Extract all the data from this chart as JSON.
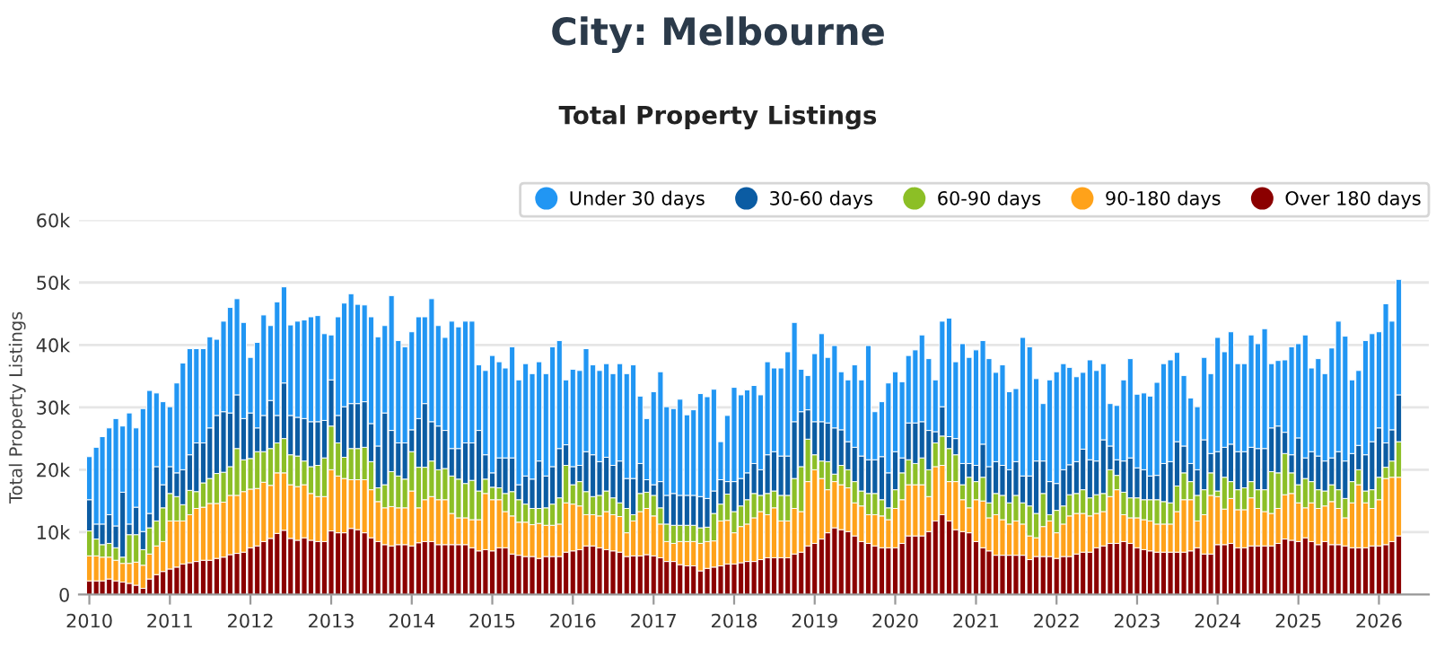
{
  "chart_data": {
    "type": "bar",
    "stacked": true,
    "title": "City: Melbourne",
    "subtitle": "Total Property Listings",
    "ylabel": "Total Property Listings",
    "x": [
      "2010-01",
      "2010-02",
      "2010-03",
      "2010-04",
      "2010-05",
      "2010-06",
      "2010-07",
      "2010-08",
      "2010-09",
      "2010-10",
      "2010-11",
      "2010-12",
      "2011-01",
      "2011-02",
      "2011-03",
      "2011-04",
      "2011-05",
      "2011-06",
      "2011-07",
      "2011-08",
      "2011-09",
      "2011-10",
      "2011-11",
      "2011-12",
      "2012-01",
      "2012-02",
      "2012-03",
      "2012-04",
      "2012-05",
      "2012-06",
      "2012-07",
      "2012-08",
      "2012-09",
      "2012-10",
      "2012-11",
      "2012-12",
      "2013-01",
      "2013-02",
      "2013-03",
      "2013-04",
      "2013-05",
      "2013-06",
      "2013-07",
      "2013-08",
      "2013-09",
      "2013-10",
      "2013-11",
      "2013-12",
      "2014-01",
      "2014-02",
      "2014-03",
      "2014-04",
      "2014-05",
      "2014-06",
      "2014-07",
      "2014-08",
      "2014-09",
      "2014-10",
      "2014-11",
      "2014-12",
      "2015-01",
      "2015-02",
      "2015-03",
      "2015-04",
      "2015-05",
      "2015-06",
      "2015-07",
      "2015-08",
      "2015-09",
      "2015-10",
      "2015-11",
      "2015-12",
      "2016-01",
      "2016-02",
      "2016-03",
      "2016-04",
      "2016-05",
      "2016-06",
      "2016-07",
      "2016-08",
      "2016-09",
      "2016-10",
      "2016-11",
      "2016-12",
      "2017-01",
      "2017-02",
      "2017-03",
      "2017-04",
      "2017-05",
      "2017-06",
      "2017-07",
      "2017-08",
      "2017-09",
      "2017-10",
      "2017-11",
      "2017-12",
      "2018-01",
      "2018-02",
      "2018-03",
      "2018-04",
      "2018-05",
      "2018-06",
      "2018-07",
      "2018-08",
      "2018-09",
      "2018-10",
      "2018-11",
      "2018-12",
      "2019-01",
      "2019-02",
      "2019-03",
      "2019-04",
      "2019-05",
      "2019-06",
      "2019-07",
      "2019-08",
      "2019-09",
      "2019-10",
      "2019-11",
      "2019-12",
      "2020-01",
      "2020-02",
      "2020-03",
      "2020-04",
      "2020-05",
      "2020-06",
      "2020-07",
      "2020-08",
      "2020-09",
      "2020-10",
      "2020-11",
      "2020-12",
      "2021-01",
      "2021-02",
      "2021-03",
      "2021-04",
      "2021-05",
      "2021-06",
      "2021-07",
      "2021-08",
      "2021-09",
      "2021-10",
      "2021-11",
      "2021-12",
      "2022-01",
      "2022-02",
      "2022-03",
      "2022-04",
      "2022-05",
      "2022-06",
      "2022-07",
      "2022-08",
      "2022-09",
      "2022-10",
      "2022-11",
      "2022-12",
      "2023-01",
      "2023-02",
      "2023-03",
      "2023-04",
      "2023-05",
      "2023-06",
      "2023-07",
      "2023-08",
      "2023-09",
      "2023-10",
      "2023-11",
      "2023-12",
      "2024-01",
      "2024-02",
      "2024-03",
      "2024-04",
      "2024-05",
      "2024-06",
      "2024-07",
      "2024-08",
      "2024-09",
      "2024-10",
      "2024-11",
      "2024-12",
      "2025-01",
      "2025-02",
      "2025-03",
      "2025-04",
      "2025-05",
      "2025-06",
      "2025-07",
      "2025-08",
      "2025-09",
      "2025-10",
      "2025-11",
      "2025-12",
      "2026-01",
      "2026-02",
      "2026-03",
      "2026-04"
    ],
    "series": [
      {
        "name": "Over 180 days",
        "color": "#8b0000",
        "values": [
          2200,
          2200,
          2200,
          2500,
          2200,
          2000,
          1800,
          1500,
          1000,
          2500,
          3200,
          3700,
          4100,
          4400,
          4900,
          5100,
          5300,
          5500,
          5500,
          5800,
          6000,
          6400,
          6600,
          6800,
          7500,
          7800,
          8500,
          9000,
          9800,
          10300,
          9000,
          8700,
          9100,
          8700,
          8500,
          8500,
          10200,
          9900,
          9900,
          10600,
          10400,
          9900,
          9100,
          8500,
          8000,
          7800,
          8000,
          8000,
          7800,
          8300,
          8500,
          8500,
          8000,
          8000,
          8000,
          8000,
          8000,
          7500,
          7000,
          7200,
          7000,
          7500,
          7500,
          6500,
          6300,
          6100,
          6100,
          5800,
          6100,
          6100,
          6100,
          6800,
          7000,
          7200,
          7800,
          7800,
          7500,
          7200,
          7000,
          6800,
          6100,
          6200,
          6200,
          6400,
          6200,
          5900,
          5300,
          5300,
          4800,
          4600,
          4600,
          3800,
          4200,
          4400,
          4600,
          4900,
          4900,
          5100,
          5300,
          5300,
          5600,
          5900,
          5900,
          5900,
          5900,
          6500,
          6800,
          7800,
          8200,
          8900,
          9900,
          10700,
          10400,
          10100,
          9400,
          8500,
          8200,
          7800,
          7500,
          7500,
          7500,
          8200,
          9400,
          9400,
          9400,
          10100,
          11800,
          12800,
          11800,
          10400,
          10100,
          9900,
          8500,
          7500,
          7000,
          6300,
          6300,
          6300,
          6300,
          6300,
          5600,
          6100,
          6100,
          6100,
          5800,
          6100,
          6100,
          6500,
          6800,
          6800,
          7500,
          7800,
          8200,
          8200,
          8500,
          8200,
          7500,
          7200,
          7000,
          6800,
          6800,
          6800,
          6800,
          6800,
          7000,
          7500,
          6500,
          6500,
          8000,
          8000,
          8200,
          7500,
          7500,
          7800,
          7800,
          7800,
          7800,
          8200,
          8900,
          8700,
          8500,
          9100,
          8500,
          8000,
          8500,
          8000,
          8000,
          7800,
          7500,
          7500,
          7500,
          7800,
          7800,
          8000,
          8500,
          9400
        ]
      },
      {
        "name": "90-180 days",
        "color": "#ffa21a",
        "values": [
          4000,
          4000,
          3800,
          3500,
          3300,
          3000,
          3200,
          3700,
          3700,
          4000,
          4600,
          4800,
          7700,
          7400,
          6900,
          7700,
          8500,
          8500,
          9100,
          8800,
          8800,
          9500,
          9300,
          9700,
          9400,
          9200,
          9500,
          8500,
          9700,
          9200,
          8600,
          8600,
          8500,
          7500,
          7200,
          7200,
          9800,
          9100,
          8700,
          7800,
          8000,
          8500,
          7700,
          6400,
          5900,
          6300,
          5900,
          5900,
          8800,
          5600,
          6700,
          7200,
          7200,
          7200,
          5000,
          4300,
          4300,
          4500,
          5000,
          9000,
          8200,
          7700,
          5800,
          6100,
          5300,
          5500,
          5100,
          5600,
          5000,
          5000,
          5200,
          7900,
          7500,
          7000,
          5000,
          5000,
          5100,
          6100,
          5800,
          5700,
          3800,
          5600,
          7100,
          7400,
          6400,
          5400,
          3200,
          2900,
          3700,
          3900,
          3900,
          4400,
          4300,
          4200,
          7200,
          7000,
          5000,
          5800,
          6000,
          7000,
          7700,
          6900,
          8000,
          5900,
          5900,
          7300,
          6500,
          10300,
          11800,
          9700,
          6900,
          7400,
          7200,
          7000,
          5300,
          5700,
          4600,
          5000,
          5100,
          4500,
          6300,
          7000,
          8200,
          8200,
          8200,
          5600,
          8700,
          7900,
          6300,
          7700,
          5100,
          4000,
          6700,
          7500,
          5300,
          6500,
          5700,
          5000,
          5500,
          5000,
          3800,
          3000,
          4800,
          5700,
          4100,
          5200,
          6500,
          6500,
          6200,
          5800,
          5500,
          5500,
          7500,
          8600,
          4300,
          4100,
          4800,
          4800,
          4800,
          4500,
          4500,
          4500,
          6500,
          8400,
          8200,
          4300,
          6300,
          9400,
          7700,
          5700,
          7200,
          6100,
          6100,
          7700,
          6000,
          5500,
          5200,
          5600,
          7100,
          7500,
          6200,
          4800,
          6200,
          5800,
          5700,
          6900,
          5800,
          4500,
          7200,
          10100,
          7200,
          6000,
          7400,
          10600,
          10300,
          9400
        ]
      },
      {
        "name": "60-90 days",
        "color": "#8cbf26",
        "values": [
          4000,
          2700,
          2000,
          2200,
          2000,
          1000,
          4600,
          4400,
          2500,
          4200,
          4000,
          5400,
          4400,
          3900,
          2600,
          3900,
          2700,
          3900,
          4000,
          4800,
          4800,
          4600,
          7500,
          5100,
          4900,
          5900,
          4900,
          5900,
          4800,
          5500,
          4800,
          4900,
          3800,
          4300,
          5000,
          6200,
          7000,
          5300,
          3400,
          5000,
          5000,
          5200,
          4500,
          2200,
          3700,
          5600,
          5100,
          4600,
          6300,
          6500,
          5200,
          5700,
          4800,
          5000,
          6000,
          6200,
          5500,
          6300,
          4600,
          2300,
          2000,
          1900,
          2900,
          3900,
          3600,
          2900,
          2600,
          2400,
          2800,
          3400,
          4200,
          6000,
          3100,
          3900,
          3700,
          2900,
          3300,
          3300,
          2700,
          2200,
          3900,
          1000,
          2900,
          2600,
          3300,
          2600,
          2800,
          2900,
          2600,
          2600,
          2600,
          2500,
          2300,
          4400,
          2700,
          4200,
          3400,
          3300,
          3900,
          3900,
          2600,
          3400,
          2700,
          4100,
          4100,
          4800,
          7200,
          6800,
          2400,
          2800,
          4500,
          1200,
          3100,
          2900,
          3400,
          2400,
          3400,
          3400,
          2600,
          1900,
          3000,
          4300,
          4000,
          3400,
          4300,
          4300,
          3800,
          4700,
          5300,
          4300,
          2400,
          4900,
          2900,
          3800,
          2400,
          3400,
          3900,
          3400,
          4100,
          3400,
          4800,
          3900,
          5300,
          1000,
          3600,
          2900,
          3400,
          3200,
          3800,
          2900,
          3000,
          2900,
          4300,
          2300,
          3600,
          3200,
          3200,
          3200,
          3400,
          3900,
          3600,
          3400,
          4100,
          4300,
          2900,
          4100,
          4000,
          3600,
          900,
          5100,
          2700,
          3200,
          3500,
          2600,
          3000,
          3500,
          6700,
          5700,
          6600,
          3300,
          2900,
          4700,
          3400,
          3000,
          2400,
          2700,
          3000,
          3100,
          3400,
          2400,
          1900,
          3000,
          3600,
          1800,
          2600,
          5700
        ]
      },
      {
        "name": "30-60 days",
        "color": "#0b5ca3",
        "values": [
          5000,
          2400,
          3300,
          4600,
          3500,
          10400,
          1700,
          4400,
          2900,
          2300,
          8700,
          3700,
          4300,
          3800,
          5600,
          5700,
          7800,
          6400,
          8100,
          9300,
          9700,
          8600,
          8600,
          6600,
          7300,
          3800,
          5800,
          7700,
          4400,
          8900,
          6300,
          6200,
          6800,
          7200,
          7000,
          6000,
          7400,
          4400,
          8100,
          7200,
          7200,
          7300,
          6100,
          6700,
          11500,
          6600,
          5300,
          5800,
          3500,
          7800,
          10200,
          6300,
          7000,
          6100,
          4400,
          4900,
          6500,
          6000,
          9700,
          3900,
          2300,
          4800,
          5700,
          5400,
          2400,
          4500,
          4700,
          7600,
          5100,
          6000,
          7900,
          3300,
          2900,
          2600,
          6400,
          6700,
          5400,
          5400,
          5200,
          6700,
          4800,
          5800,
          4800,
          2000,
          1700,
          4200,
          4600,
          5100,
          4800,
          4800,
          4800,
          5000,
          4600,
          3600,
          3900,
          2000,
          4800,
          4400,
          4300,
          4800,
          4100,
          6200,
          6300,
          6300,
          6300,
          9100,
          8800,
          4700,
          5300,
          6300,
          6200,
          7400,
          5700,
          4500,
          5500,
          5600,
          5400,
          5400,
          6900,
          5600,
          6100,
          2400,
          5900,
          6500,
          5800,
          6300,
          1800,
          4700,
          1900,
          2600,
          3400,
          2200,
          2600,
          5300,
          5800,
          5100,
          4800,
          5300,
          5400,
          4300,
          4800,
          8400,
          5200,
          5300,
          4300,
          5800,
          4800,
          5100,
          6500,
          6100,
          5400,
          8600,
          3800,
          2500,
          5000,
          6400,
          4800,
          4800,
          3800,
          3900,
          6100,
          6600,
          7100,
          4300,
          2900,
          4100,
          8000,
          3100,
          6300,
          4800,
          6000,
          6100,
          5800,
          5500,
          6600,
          6600,
          7000,
          7500,
          3400,
          2900,
          7500,
          3300,
          4800,
          5400,
          4800,
          4300,
          6100,
          6000,
          4500,
          3900,
          5800,
          7700,
          7900,
          3900,
          5000,
          7500
        ]
      },
      {
        "name": "Under 30 days",
        "color": "#2196f3",
        "values": [
          6900,
          12300,
          14000,
          13900,
          17200,
          10600,
          17800,
          12700,
          19700,
          19700,
          11800,
          13300,
          9600,
          14400,
          17100,
          17000,
          15100,
          15100,
          14600,
          12200,
          14500,
          16900,
          15400,
          15400,
          8900,
          13700,
          16100,
          12000,
          18200,
          15400,
          14500,
          15400,
          15800,
          16800,
          17000,
          13900,
          7200,
          15800,
          16600,
          17600,
          15900,
          15500,
          17100,
          17500,
          14000,
          21600,
          16400,
          15400,
          15700,
          16300,
          13900,
          19700,
          16100,
          14900,
          20400,
          19500,
          19500,
          19500,
          10500,
          13500,
          18800,
          15400,
          14400,
          17800,
          16800,
          18000,
          16900,
          15900,
          16400,
          19200,
          17300,
          10400,
          15600,
          15200,
          16500,
          14400,
          14600,
          15000,
          14700,
          15600,
          16800,
          18200,
          10800,
          9800,
          14900,
          17600,
          14200,
          13600,
          15400,
          12900,
          13700,
          16500,
          16300,
          16300,
          6100,
          10600,
          15100,
          13400,
          13300,
          12500,
          12000,
          14900,
          13400,
          14100,
          16700,
          15900,
          6800,
          5500,
          10900,
          14100,
          10500,
          13200,
          9300,
          9900,
          13200,
          12200,
          18300,
          7700,
          8800,
          14400,
          12800,
          12200,
          10800,
          11700,
          13900,
          11500,
          8300,
          13700,
          19000,
          12300,
          19200,
          17000,
          18500,
          16600,
          17300,
          14300,
          16100,
          12500,
          11700,
          22200,
          20700,
          13200,
          9200,
          16300,
          17900,
          17000,
          15600,
          13600,
          12300,
          16000,
          14500,
          12200,
          6800,
          8700,
          13000,
          15900,
          11800,
          12300,
          12800,
          14900,
          16000,
          16300,
          14300,
          11300,
          10500,
          10100,
          13200,
          12800,
          18300,
          15300,
          18000,
          14100,
          14100,
          18000,
          16800,
          19200,
          10300,
          10500,
          11600,
          17300,
          15100,
          19700,
          13400,
          15600,
          14000,
          17600,
          20900,
          20000,
          11800,
          12000,
          18300,
          17300,
          15400,
          22300,
          17400,
          18500
        ]
      }
    ],
    "xlim": [
      "2009-11-15",
      "2026-08-15"
    ],
    "xticks": [
      {
        "value": "2010",
        "label": "2010"
      },
      {
        "value": "2011",
        "label": "2011"
      },
      {
        "value": "2012",
        "label": "2012"
      },
      {
        "value": "2013",
        "label": "2013"
      },
      {
        "value": "2014",
        "label": "2014"
      },
      {
        "value": "2015",
        "label": "2015"
      },
      {
        "value": "2016",
        "label": "2016"
      },
      {
        "value": "2017",
        "label": "2017"
      },
      {
        "value": "2018",
        "label": "2018"
      },
      {
        "value": "2019",
        "label": "2019"
      },
      {
        "value": "2020",
        "label": "2020"
      },
      {
        "value": "2021",
        "label": "2021"
      },
      {
        "value": "2022",
        "label": "2022"
      },
      {
        "value": "2023",
        "label": "2023"
      },
      {
        "value": "2024",
        "label": "2024"
      },
      {
        "value": "2025",
        "label": "2025"
      },
      {
        "value": "2026",
        "label": "2026"
      }
    ],
    "ylim": [
      0,
      60000
    ],
    "yticks": [
      0,
      {
        "value": 10000,
        "label": "10k"
      },
      {
        "value": 20000,
        "label": "20k"
      },
      {
        "value": 30000,
        "label": "30k"
      },
      {
        "value": 40000,
        "label": "40k"
      },
      {
        "value": 50000,
        "label": "50k"
      },
      {
        "value": 60000,
        "label": "60k"
      }
    ],
    "grid": "y",
    "legend": "top right"
  }
}
